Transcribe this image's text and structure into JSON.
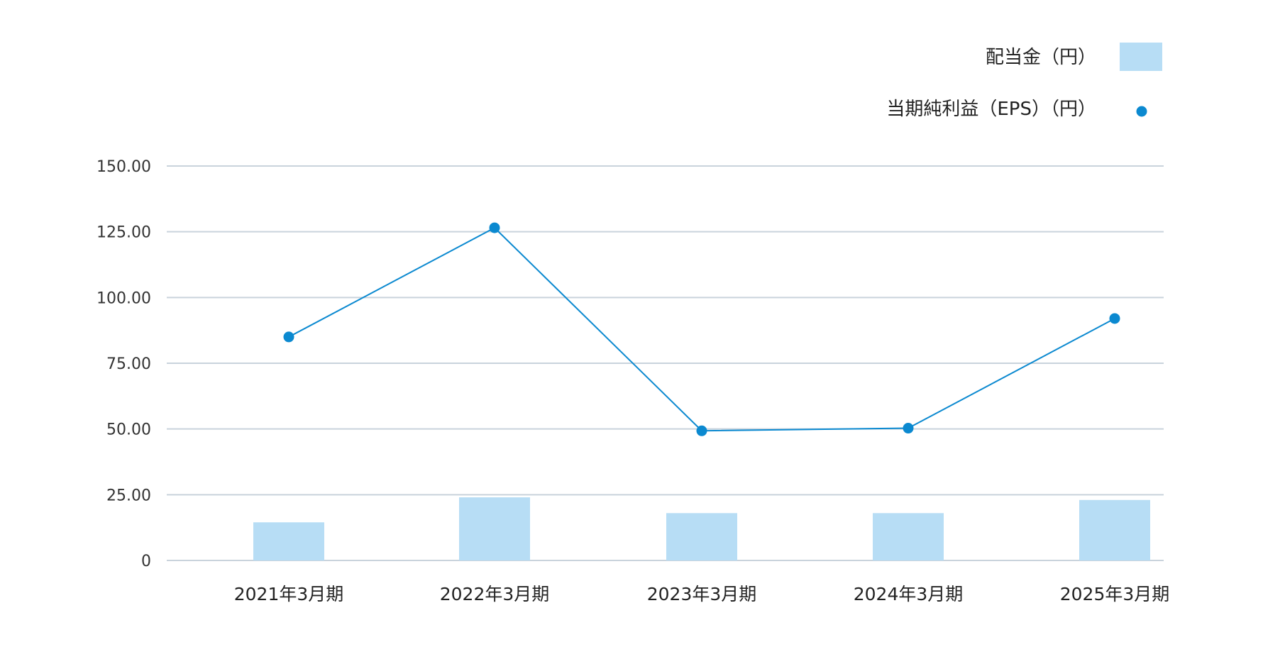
{
  "chart_data": {
    "type": "bar",
    "categories": [
      "2021年3月期",
      "2022年3月期",
      "2023年3月期",
      "2024年3月期",
      "2025年3月期"
    ],
    "series": [
      {
        "name": "配当金（円）",
        "type": "bar",
        "color": "#b7ddf5",
        "values": [
          14.5,
          24.0,
          18.0,
          18.0,
          23.0
        ]
      },
      {
        "name": "当期純利益（EPS）（円）",
        "type": "line",
        "color": "#0b89d0",
        "values": [
          85.0,
          126.5,
          49.3,
          50.3,
          92.0
        ]
      }
    ],
    "ylim": [
      0,
      150
    ],
    "yticks": [
      "0",
      "25.00",
      "50.00",
      "75.00",
      "100.00",
      "125.00",
      "150.00"
    ],
    "ytick_values": [
      0,
      25,
      50,
      75,
      100,
      125,
      150
    ],
    "grid": true,
    "grid_color": "#c9d3dc",
    "legend_position": "top-right",
    "title": "",
    "xlabel": "",
    "ylabel": ""
  }
}
